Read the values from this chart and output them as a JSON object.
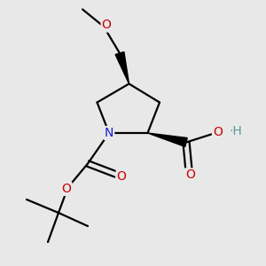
{
  "background_color": "#e8e8e8",
  "atom_colors": {
    "C": "#000000",
    "N": "#1a1acc",
    "O": "#cc0000",
    "H": "#5a9a9a"
  },
  "bond_color": "#000000",
  "bond_width": 1.6
}
